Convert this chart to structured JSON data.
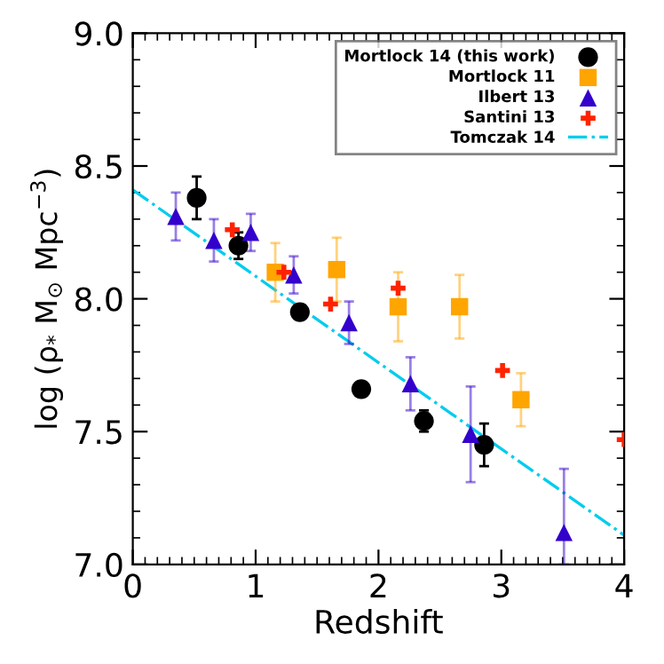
{
  "chart_data": {
    "type": "scatter",
    "xlabel": "Redshift",
    "ylabel": "log (ρ$_{*}$ M$_{⊙}$ Mpc$^{−3}$)",
    "xlim": [
      0,
      4
    ],
    "ylim": [
      7.0,
      9.0
    ],
    "xticks": [
      0,
      1,
      2,
      3,
      4
    ],
    "yticks": [
      {
        "value": 7.0,
        "label": "7.0"
      },
      {
        "value": 7.5,
        "label": "7.5"
      },
      {
        "value": 8.0,
        "label": "8.0"
      },
      {
        "value": 8.5,
        "label": "8.5"
      },
      {
        "value": 9.0,
        "label": "9.0"
      }
    ],
    "legend": "top right",
    "series": [
      {
        "name": "Mortlock 14 (this work)",
        "color": "#000000",
        "marker": "circle",
        "x": [
          0.52,
          0.86,
          1.36,
          1.86,
          2.37,
          2.86
        ],
        "values": [
          8.38,
          8.2,
          7.95,
          7.66,
          7.54,
          7.45
        ],
        "errors": [
          0.08,
          0.05,
          null,
          null,
          0.04,
          0.08
        ]
      },
      {
        "name": "Mortlock 11",
        "color": "#ffa500",
        "marker": "square",
        "x": [
          1.16,
          1.66,
          2.16,
          2.66,
          3.16
        ],
        "values": [
          8.1,
          8.11,
          7.97,
          7.97,
          7.62
        ],
        "errors": [
          0.11,
          0.12,
          0.13,
          0.12,
          0.1
        ]
      },
      {
        "name": "Ilbert 13",
        "color": "#3300cc",
        "marker": "triangle",
        "x": [
          0.35,
          0.66,
          0.96,
          1.31,
          1.76,
          2.26,
          2.75,
          3.51
        ],
        "values": [
          8.31,
          8.22,
          8.25,
          8.09,
          7.91,
          7.68,
          7.49,
          7.12
        ],
        "errors": [
          0.09,
          0.08,
          0.07,
          0.07,
          0.08,
          0.1,
          0.18,
          [
            7.0,
            7.36
          ]
        ]
      },
      {
        "name": "Santini 13",
        "color": "#ff2200",
        "marker": "cross",
        "x": [
          0.81,
          1.23,
          1.61,
          2.16,
          3.01,
          4.0
        ],
        "values": [
          8.26,
          8.1,
          7.98,
          8.04,
          7.73,
          7.47
        ]
      },
      {
        "name": "Tomczak 14",
        "type": "line",
        "color": "#00ccee",
        "line_style": "dashdot",
        "x": [
          0,
          4
        ],
        "values": [
          8.41,
          7.11
        ]
      }
    ]
  }
}
